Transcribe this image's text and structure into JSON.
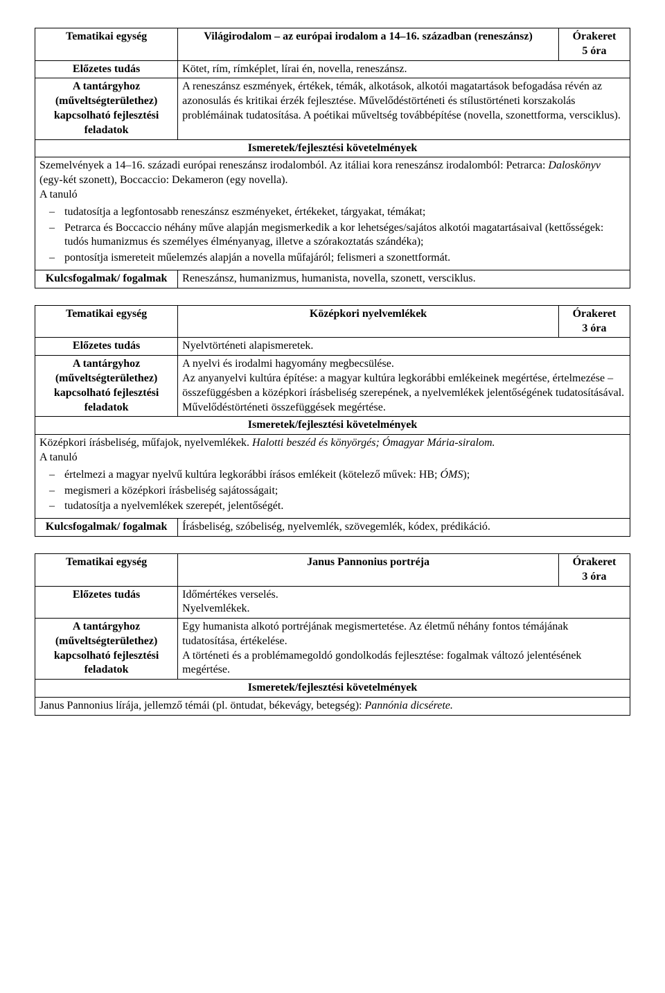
{
  "sections": [
    {
      "unit_label": "Tematikai egység",
      "unit_title": "Világirodalom – az európai irodalom a 14–16. században (reneszánsz)",
      "hours_label": "Órakeret",
      "hours_value": "5 óra",
      "prior_label": "Előzetes tudás",
      "prior_text": "Kötet, rím, rímképlet, lírai én, novella, reneszánsz.",
      "dev_label": "A tantárgyhoz (műveltségterülethez) kapcsolható fejlesztési feladatok",
      "dev_text": "A reneszánsz eszmények, értékek, témák, alkotások, alkotói magatartások befogadása révén az azonosulás és kritikai érzék fejlesztése. Művelődéstörténeti és stílustörténeti korszakolás problémáinak tudatosítása. A poétikai műveltség továbbépítése (novella, szonettforma, versciklus).",
      "req_header": "Ismeretek/fejlesztési követelmények",
      "req_intro_before": "Szemelvények a 14–16. századi európai reneszánsz irodalomból. Az itáliai kora reneszánsz irodalomból: Petrarca: ",
      "req_intro_italic": "Daloskönyv",
      "req_intro_after": " (egy-két szonett), Boccaccio: Dekameron (egy novella).",
      "req_lead": "A tanuló",
      "req_items": [
        "tudatosítja a legfontosabb reneszánsz eszményeket, értékeket, tárgyakat, témákat;",
        "Petrarca és Boccaccio néhány műve alapján megismerkedik a kor lehetséges/sajátos alkotói magatartásaival (kettősségek: tudós humanizmus és személyes élményanyag, illetve a szórakoztatás szándéka);",
        "pontosítja ismereteit műelemzés alapján a novella műfajáról; felismeri a szonettformát."
      ],
      "key_label": "Kulcsfogalmak/ fogalmak",
      "key_text": "Reneszánsz, humanizmus, humanista, novella, szonett, versciklus."
    },
    {
      "unit_label": "Tematikai egység",
      "unit_title": "Középkori nyelvemlékek",
      "hours_label": "Órakeret",
      "hours_value": "3 óra",
      "prior_label": "Előzetes tudás",
      "prior_text": "Nyelvtörténeti alapismeretek.",
      "dev_label": "A tantárgyhoz (műveltségterülethez) kapcsolható fejlesztési feladatok",
      "dev_text": "A nyelvi és irodalmi hagyomány megbecsülése.\nAz anyanyelvi kultúra építése: a magyar kultúra legkorábbi emlékeinek megértése, értelmezése – összefüggésben a középkori írásbeliség szerepének, a nyelvemlékek jelentőségének tudatosításával. Művelődéstörténeti összefüggések megértése.",
      "req_header": "Ismeretek/fejlesztési követelmények",
      "req_intro_before": "Középkori írásbeliség, műfajok, nyelvemlékek. ",
      "req_intro_italic": "Halotti beszéd és könyörgés; Ómagyar Mária-siralom.",
      "req_intro_after": "",
      "req_lead": "A tanuló",
      "req_items": [
        "értelmezi a magyar nyelvű kultúra legkorábbi írásos emlékeit (kötelező művek: HB; <i>ÓMS</i>);",
        "megismeri a középkori írásbeliség sajátosságait;",
        "tudatosítja a nyelvemlékek szerepét, jelentőségét."
      ],
      "key_label": "Kulcsfogalmak/ fogalmak",
      "key_text": "Írásbeliség, szóbeliség, nyelvemlék, szövegemlék, kódex, prédikáció."
    },
    {
      "unit_label": "Tematikai egység",
      "unit_title": "Janus Pannonius portréja",
      "hours_label": "Órakeret",
      "hours_value": "3 óra",
      "prior_label": "Előzetes tudás",
      "prior_text": "Időmértékes verselés.\nNyelvemlékek.",
      "dev_label": "A tantárgyhoz (műveltségterülethez) kapcsolható fejlesztési feladatok",
      "dev_text": "Egy humanista alkotó portréjának megismertetése. Az életmű néhány fontos témájának tudatosítása, értékelése.\nA történeti és a problémamegoldó gondolkodás fejlesztése: fogalmak változó jelentésének megértése.",
      "req_header": "Ismeretek/fejlesztési követelmények",
      "req_intro_before": "Janus Pannonius lírája, jellemző témái (pl. öntudat, békevágy, betegség): ",
      "req_intro_italic": "Pannónia dicsérete.",
      "req_intro_after": "",
      "req_lead": "",
      "req_items": [],
      "key_label": "",
      "key_text": ""
    }
  ]
}
